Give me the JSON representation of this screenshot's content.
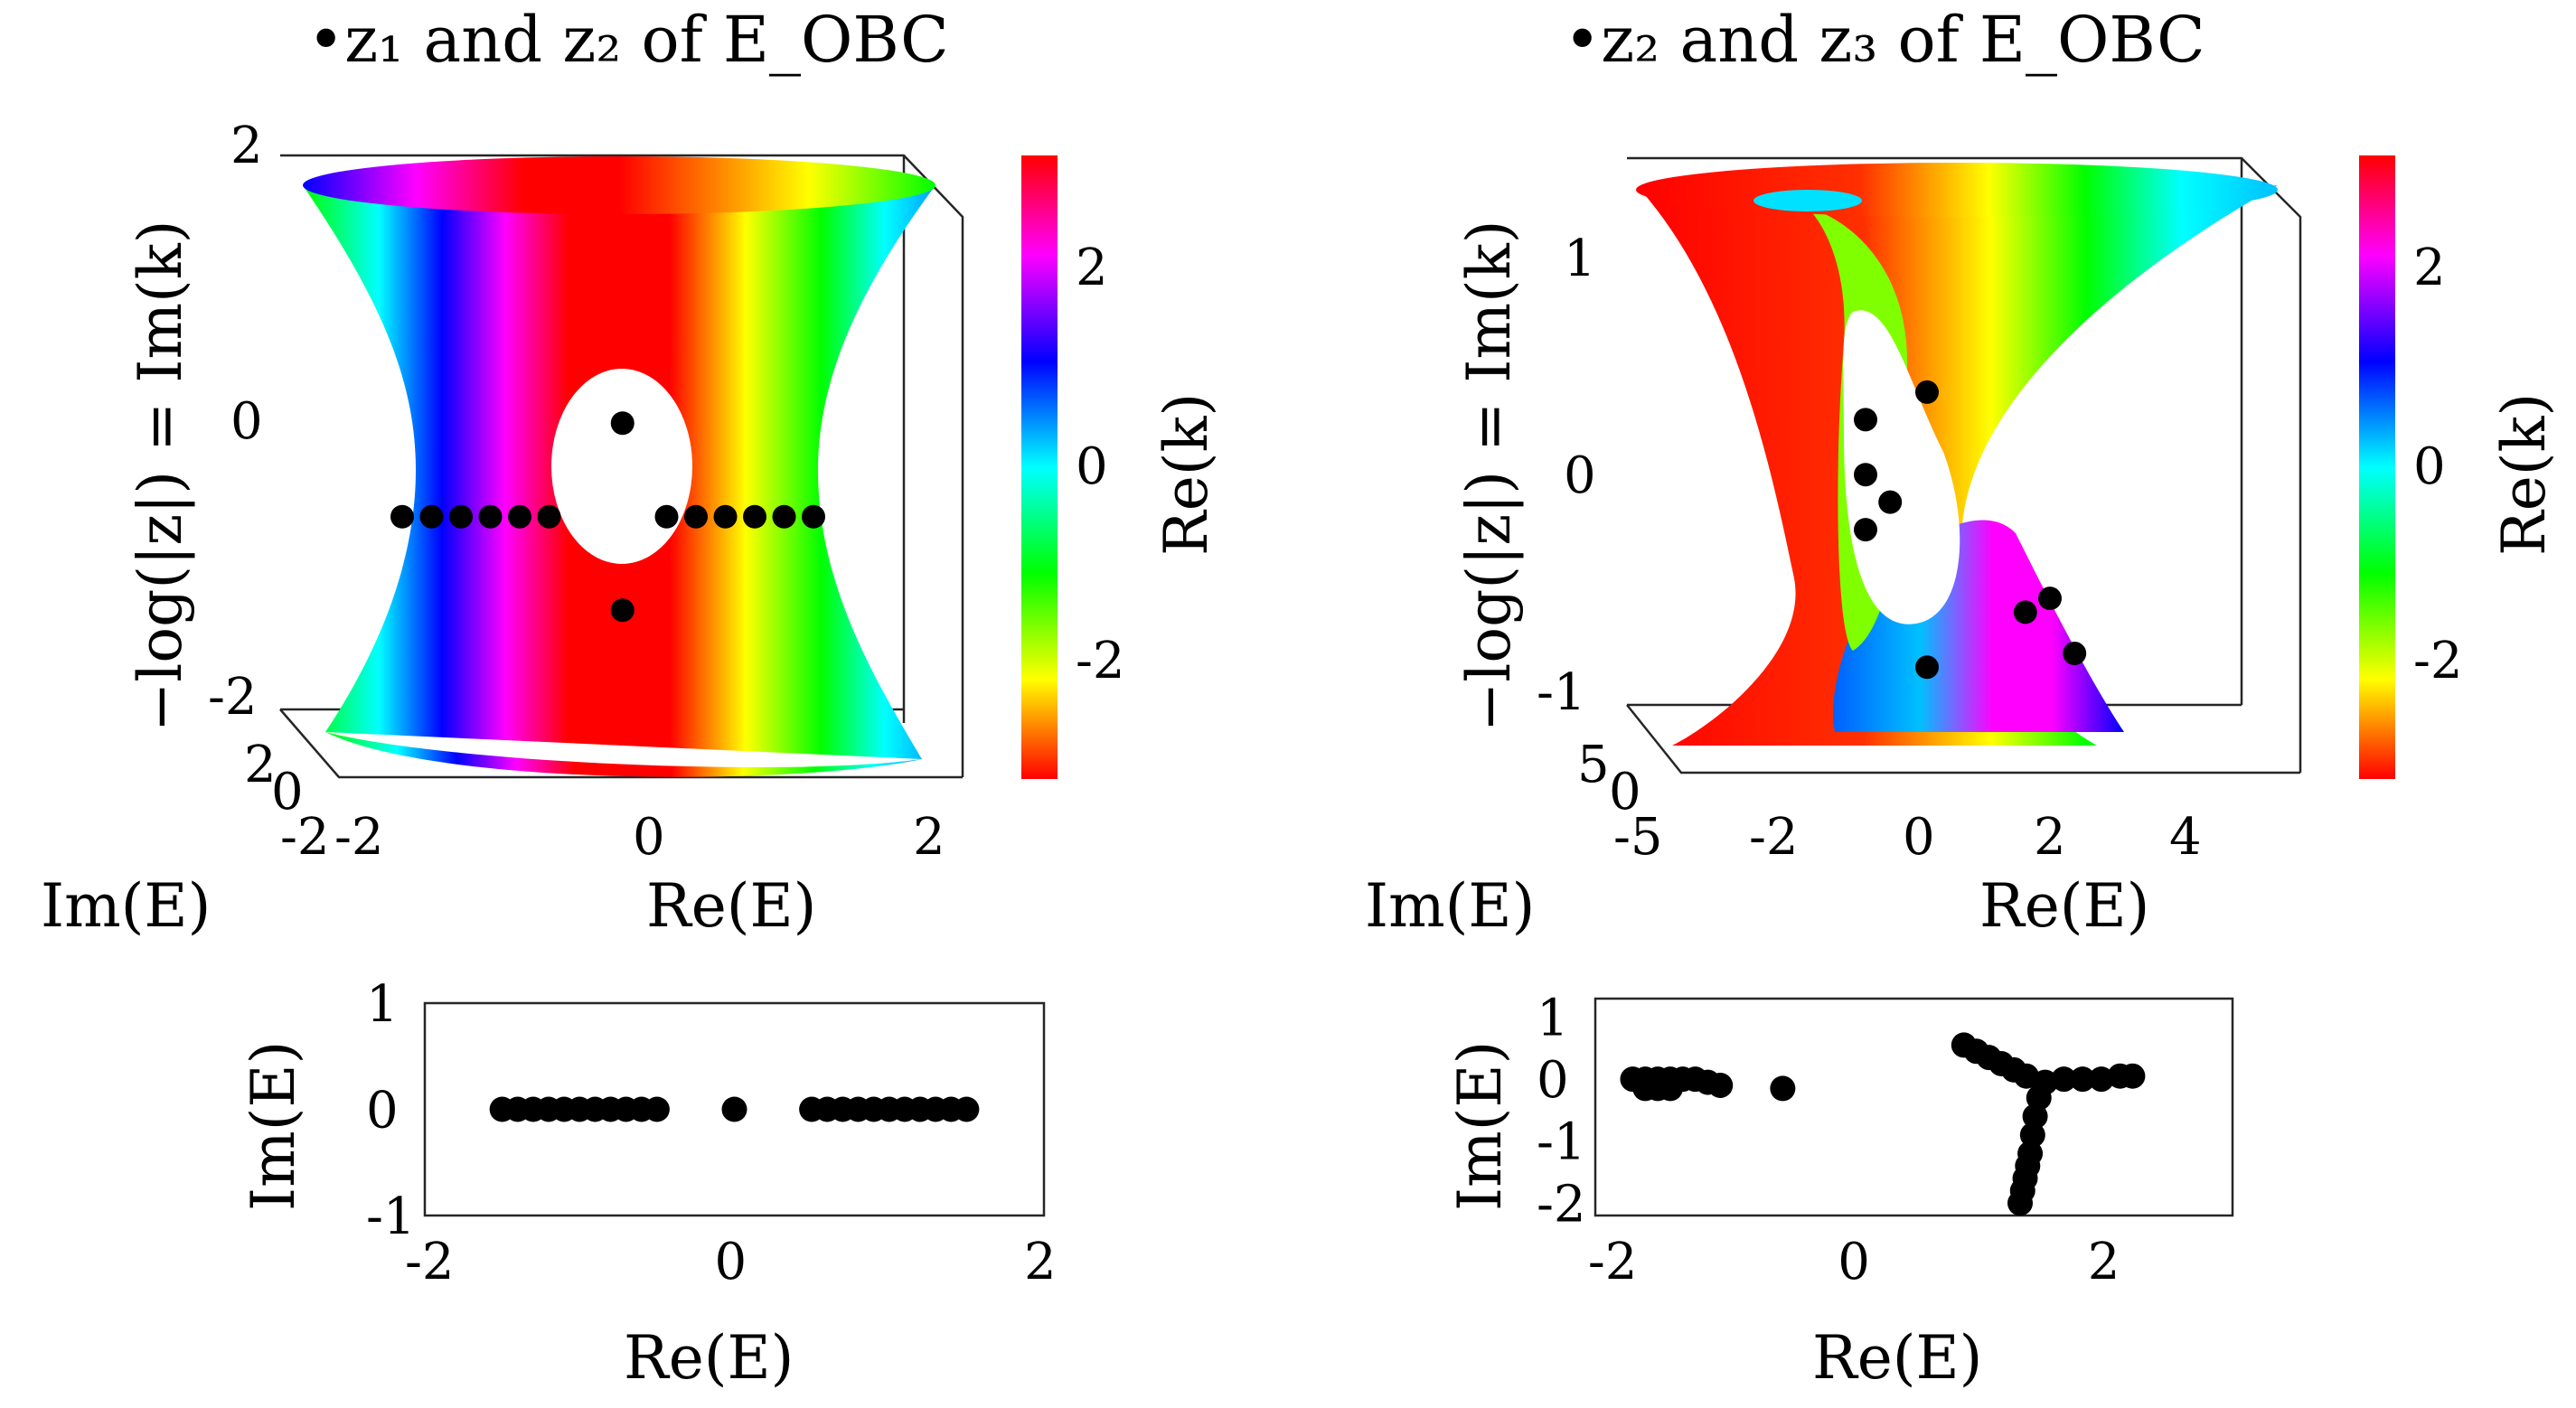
{
  "figure": {
    "panels": [
      {
        "title": "•z₁ and z₂ of E_OBC",
        "zlabel": "−log(|z|) = Im(k)",
        "xlabel": "Re(E)",
        "ylabel": "Im(E)",
        "colorbar_label": "Re(k)",
        "ztick_labels": [
          "2",
          "0",
          "-2"
        ],
        "xtick_labels": [
          "-2",
          "0",
          "2"
        ],
        "ytick_labels": [
          "2",
          "0",
          "-2"
        ],
        "cbar_tick_labels": [
          "2",
          "0",
          "-2"
        ]
      },
      {
        "title": "•z₂ and z₃ of E_OBC",
        "zlabel": "−log(|z|) = Im(k)",
        "xlabel": "Re(E)",
        "ylabel": "Im(E)",
        "colorbar_label": "Re(k)",
        "ztick_labels": [
          "1",
          "0",
          "-1"
        ],
        "xtick_labels": [
          "-5",
          "-2",
          "0",
          "2",
          "4"
        ],
        "ytick_labels": [
          "5",
          "0"
        ],
        "cbar_tick_labels": [
          "2",
          "0",
          "-2"
        ]
      }
    ],
    "colors": {
      "marker": "#000000",
      "axis": "#262626",
      "colormap": "hsv"
    }
  },
  "chart_data": [
    {
      "type": "surface",
      "surface_shape": "hyperboloid",
      "colormap": "hsv",
      "clim": [
        -3.1416,
        3.1416
      ],
      "xlim": [
        -2,
        2
      ],
      "ylim": [
        -2,
        2
      ],
      "zlim": [
        -2,
        2
      ],
      "markers": [
        {
          "x": -1.6,
          "y": 0,
          "z": -0.3
        },
        {
          "x": -1.4,
          "y": 0,
          "z": -0.3
        },
        {
          "x": -1.2,
          "y": 0,
          "z": -0.3
        },
        {
          "x": -1.0,
          "y": 0,
          "z": -0.3
        },
        {
          "x": -0.8,
          "y": 0,
          "z": -0.3
        },
        {
          "x": -0.6,
          "y": 0,
          "z": -0.3
        },
        {
          "x": 0.2,
          "y": 0,
          "z": -0.3
        },
        {
          "x": 0.4,
          "y": 0,
          "z": -0.3
        },
        {
          "x": 0.6,
          "y": 0,
          "z": -0.3
        },
        {
          "x": 0.8,
          "y": 0,
          "z": -0.3
        },
        {
          "x": 1.0,
          "y": 0,
          "z": -0.3
        },
        {
          "x": 1.2,
          "y": 0,
          "z": -0.3
        },
        {
          "x": -0.1,
          "y": 0,
          "z": 0.3
        },
        {
          "x": -0.1,
          "y": 0,
          "z": -0.9
        }
      ]
    },
    {
      "type": "surface",
      "surface_shape": "skewed-hyperboloid",
      "colormap": "hsv",
      "clim": [
        -3.1416,
        3.1416
      ],
      "xlim": [
        -5,
        5
      ],
      "ylim": [
        -5,
        5
      ],
      "zlim": [
        -1,
        1.3
      ],
      "markers": [
        {
          "x": -1.0,
          "y": 0,
          "z": 0.4
        },
        {
          "x": -1.0,
          "y": 0,
          "z": -0.6
        },
        {
          "x": -2.0,
          "y": 0,
          "z": 0.3
        },
        {
          "x": -2.0,
          "y": 0,
          "z": 0.1
        },
        {
          "x": -2.0,
          "y": 0,
          "z": -0.1
        },
        {
          "x": -1.6,
          "y": 0,
          "z": 0.0
        },
        {
          "x": 0.6,
          "y": 0,
          "z": -0.4
        },
        {
          "x": 1.0,
          "y": 0,
          "z": -0.35
        },
        {
          "x": 1.4,
          "y": 0,
          "z": -0.55
        }
      ]
    },
    {
      "type": "scatter",
      "xlabel": "Re(E)",
      "ylabel": "Im(E)",
      "xlim": [
        -2,
        2
      ],
      "ylim": [
        -1,
        1
      ],
      "xticks": [
        "-2",
        "0",
        "2"
      ],
      "yticks": [
        "1",
        "0",
        "-1"
      ],
      "x": [
        -1.5,
        -1.4,
        -1.3,
        -1.2,
        -1.1,
        -1.0,
        -0.9,
        -0.8,
        -0.7,
        -0.6,
        -0.5,
        0,
        0.5,
        0.6,
        0.7,
        0.8,
        0.9,
        1.0,
        1.1,
        1.2,
        1.3,
        1.4,
        1.5
      ],
      "y": [
        0,
        0,
        0,
        0,
        0,
        0,
        0,
        0,
        0,
        0,
        0,
        0,
        0,
        0,
        0,
        0,
        0,
        0,
        0,
        0,
        0,
        0,
        0
      ]
    },
    {
      "type": "scatter",
      "xlabel": "Re(E)",
      "ylabel": "Im(E)",
      "xlim": [
        -2.1,
        3
      ],
      "ylim": [
        -2.2,
        1.3
      ],
      "xticks": [
        "-2",
        "0",
        "2"
      ],
      "yticks": [
        "1",
        "0",
        "-1",
        "-2"
      ],
      "x": [
        -1.8,
        -1.7,
        -1.6,
        -1.5,
        -1.4,
        -1.3,
        -1.2,
        -1.1,
        -1.7,
        -1.6,
        -1.5,
        -0.6,
        0.85,
        0.95,
        1.05,
        1.15,
        1.25,
        1.35,
        1.5,
        1.65,
        1.8,
        1.95,
        2.1,
        2.2,
        1.45,
        1.42,
        1.4,
        1.38,
        1.36,
        1.34,
        1.32,
        1.3
      ],
      "y": [
        0.0,
        0.0,
        0.0,
        0.0,
        0.0,
        0.0,
        -0.05,
        -0.1,
        -0.15,
        -0.15,
        -0.15,
        -0.15,
        0.55,
        0.45,
        0.35,
        0.25,
        0.15,
        0.05,
        -0.05,
        0.0,
        0.0,
        0.0,
        0.05,
        0.05,
        -0.3,
        -0.6,
        -0.9,
        -1.2,
        -1.4,
        -1.6,
        -1.8,
        -2.0
      ]
    }
  ]
}
